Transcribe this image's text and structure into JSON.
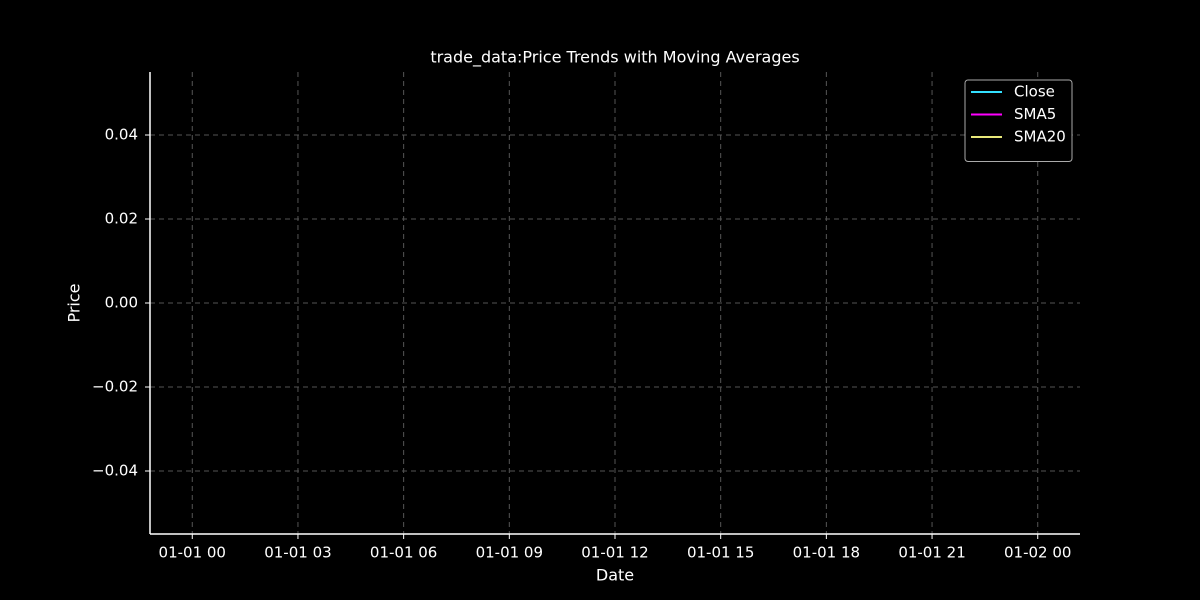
{
  "chart_data": {
    "type": "line",
    "title": "trade_data:Price Trends with Moving Averages",
    "x_label": "Date",
    "y_label": "Price",
    "x": [],
    "series": [
      {
        "name": "Close",
        "color": "#33e0ff",
        "values": []
      },
      {
        "name": "SMA5",
        "color": "#ff00ff",
        "values": []
      },
      {
        "name": "SMA20",
        "color": "#e8e87a",
        "values": []
      }
    ],
    "xlim": [
      -1.2,
      25.2
    ],
    "xticks": [
      {
        "value": 0,
        "label": "01-01 00"
      },
      {
        "value": 3,
        "label": "01-01 03"
      },
      {
        "value": 6,
        "label": "01-01 06"
      },
      {
        "value": 9,
        "label": "01-01 09"
      },
      {
        "value": 12,
        "label": "01-01 12"
      },
      {
        "value": 15,
        "label": "01-01 15"
      },
      {
        "value": 18,
        "label": "01-01 18"
      },
      {
        "value": 21,
        "label": "01-01 21"
      },
      {
        "value": 24,
        "label": "01-02 00"
      }
    ],
    "ylim": [
      -0.055,
      0.055
    ],
    "yticks": [
      {
        "value": -0.04,
        "label": "−0.04"
      },
      {
        "value": -0.02,
        "label": "−0.02"
      },
      {
        "value": 0,
        "label": "0.00"
      },
      0.02,
      0.04
    ],
    "grid": true,
    "legend_position": "upper-right"
  }
}
